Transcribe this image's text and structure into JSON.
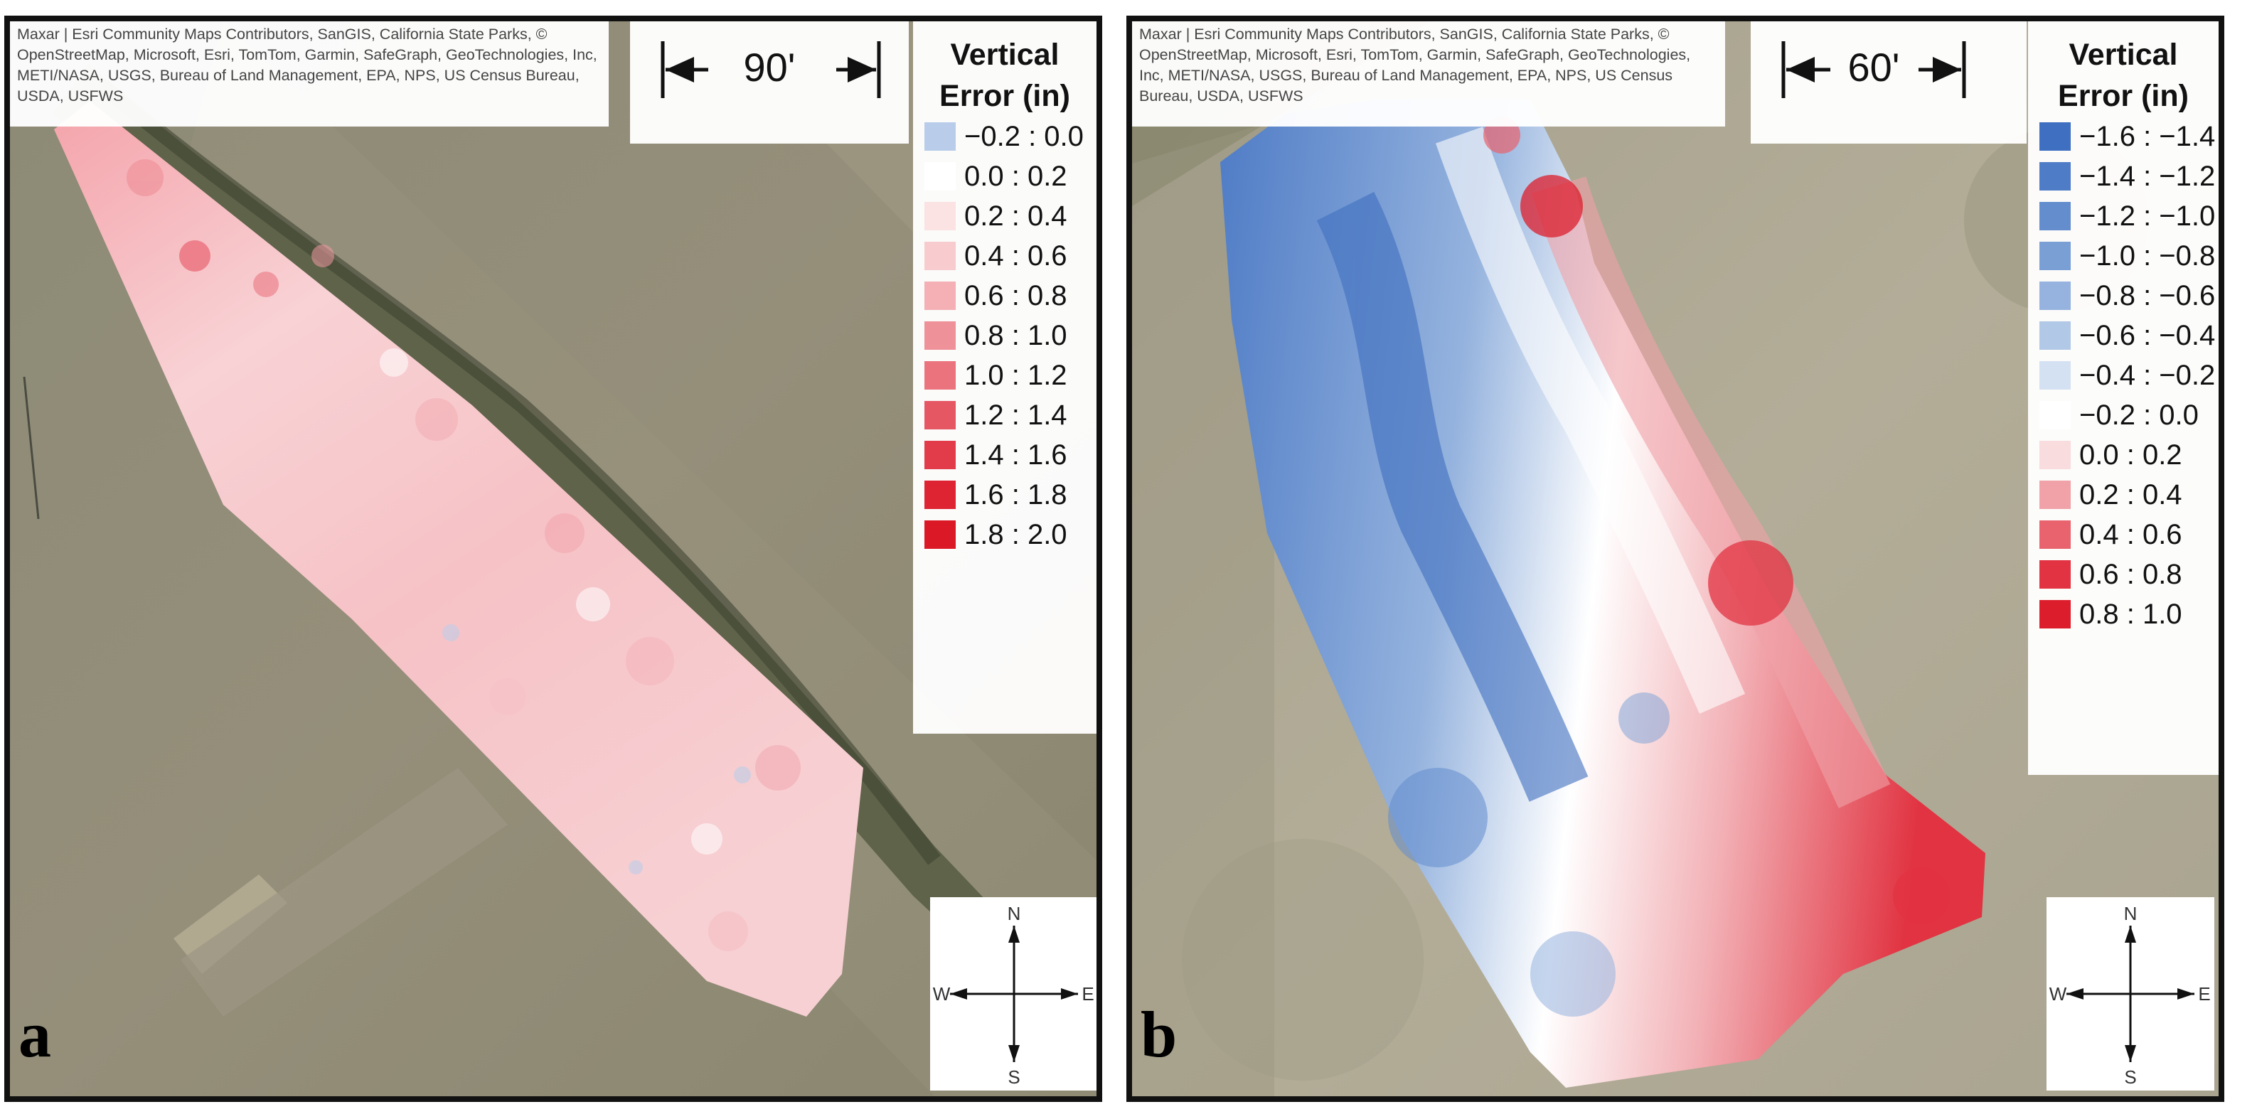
{
  "panels": {
    "a": {
      "label": "a",
      "attribution": "Maxar | Esri Community Maps Contributors, SanGIS, California State Parks, © OpenStreetMap, Microsoft, Esri, TomTom, Garmin, SafeGraph, GeoTechnologies, Inc, METI/NASA, USGS, Bureau of Land Management, EPA, NPS, US Census Bureau, USDA, USFWS",
      "scale": "90'",
      "legend": {
        "title": "Vertical Error (in)",
        "classes": [
          {
            "range": "−0.2 : 0.0",
            "color": "#b9cdeb"
          },
          {
            "range": "0.0 : 0.2",
            "color": "#ffffff"
          },
          {
            "range": "0.2 : 0.4",
            "color": "#fbe2e3"
          },
          {
            "range": "0.4 : 0.6",
            "color": "#f8cbce"
          },
          {
            "range": "0.6 : 0.8",
            "color": "#f4b0b5"
          },
          {
            "range": "0.8 : 1.0",
            "color": "#ef9199"
          },
          {
            "range": "1.0 : 1.2",
            "color": "#ea737d"
          },
          {
            "range": "1.2 : 1.4",
            "color": "#e65764"
          },
          {
            "range": "1.4 : 1.6",
            "color": "#e23c4b"
          },
          {
            "range": "1.6 : 1.8",
            "color": "#de2432"
          },
          {
            "range": "1.8 : 2.0",
            "color": "#db1826"
          }
        ]
      },
      "compass": {
        "n": "N",
        "s": "S",
        "e": "E",
        "w": "W"
      }
    },
    "b": {
      "label": "b",
      "attribution": "Maxar | Esri Community Maps Contributors, SanGIS, California State Parks, © OpenStreetMap, Microsoft, Esri, TomTom, Garmin, SafeGraph, GeoTechnologies, Inc, METI/NASA, USGS, Bureau of Land Management, EPA, NPS, US Census Bureau, USDA, USFWS",
      "scale": "60'",
      "legend": {
        "title": "Vertical Error (in)",
        "classes": [
          {
            "range": "−1.6 : −1.4",
            "color": "#3f6fc0"
          },
          {
            "range": "−1.4 : −1.2",
            "color": "#4f7cc6"
          },
          {
            "range": "−1.2 : −1.0",
            "color": "#638dcd"
          },
          {
            "range": "−1.0 : −0.8",
            "color": "#7a9fd5"
          },
          {
            "range": "−0.8 : −0.6",
            "color": "#95b3de"
          },
          {
            "range": "−0.6 : −0.4",
            "color": "#b2c8e7"
          },
          {
            "range": "−0.4 : −0.2",
            "color": "#d4e1f2"
          },
          {
            "range": "−0.2 : 0.0",
            "color": "#ffffff"
          },
          {
            "range": "0.0 : 0.2",
            "color": "#f9dcde"
          },
          {
            "range": "0.2 : 0.4",
            "color": "#f0a2a8"
          },
          {
            "range": "0.4 : 0.6",
            "color": "#e8636e"
          },
          {
            "range": "0.6 : 0.8",
            "color": "#e13341"
          },
          {
            "range": "0.8 : 1.0",
            "color": "#dc1e2c"
          }
        ]
      },
      "compass": {
        "n": "N",
        "s": "S",
        "e": "E",
        "w": "W"
      }
    }
  }
}
